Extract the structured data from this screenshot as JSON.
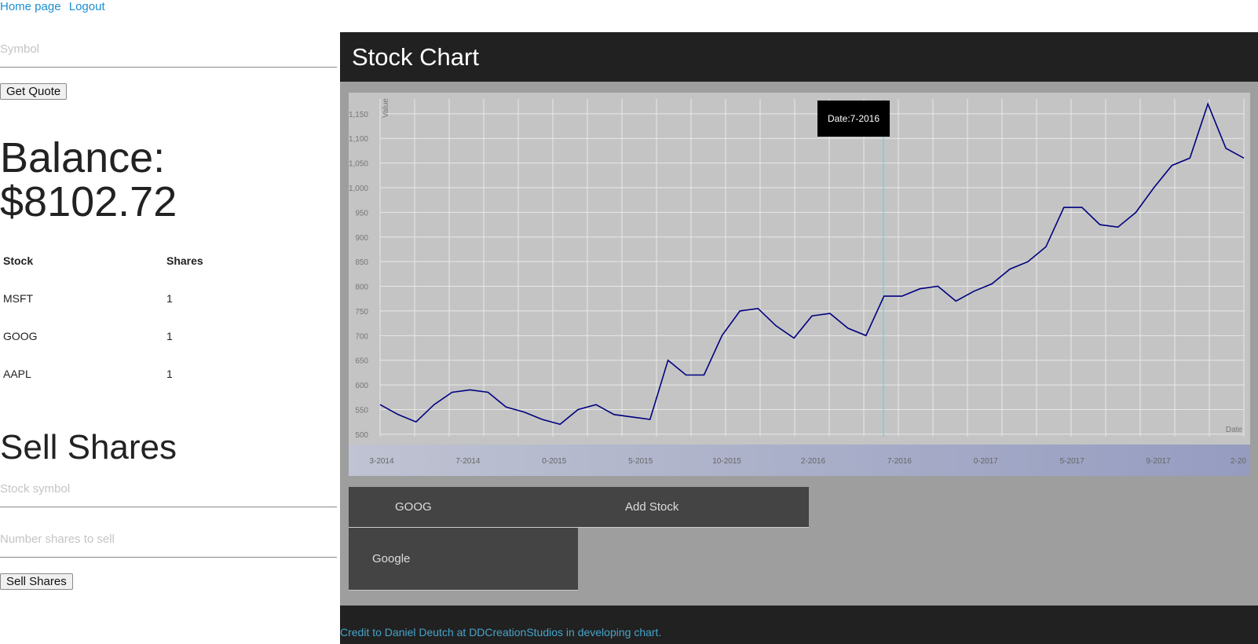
{
  "nav": {
    "home": "Home page",
    "logout": "Logout"
  },
  "quote": {
    "symbol_placeholder": "Symbol",
    "button": "Get Quote"
  },
  "balance": {
    "label": "Balance:",
    "value": "$8102.72"
  },
  "holdings": {
    "headers": [
      "Stock",
      "Shares"
    ],
    "rows": [
      {
        "stock": "MSFT",
        "shares": "1"
      },
      {
        "stock": "GOOG",
        "shares": "1"
      },
      {
        "stock": "AAPL",
        "shares": "1"
      }
    ]
  },
  "sell": {
    "title": "Sell Shares",
    "symbol_placeholder": "Stock symbol",
    "shares_placeholder": "Number shares to sell",
    "button": "Sell Shares"
  },
  "chart_panel": {
    "title": "Stock Chart",
    "tooltip": "Date:7-2016",
    "symbol_value": "GOOG",
    "add_button": "Add Stock",
    "dropdown_option": "Google",
    "footer": "Credit to Daniel Deutch at DDCreationStudios in developing chart."
  },
  "colors": {
    "line": "#000080",
    "header_bg": "#212121",
    "panel_bg": "#9e9e9e",
    "plot_bg": "#c4c4c4",
    "link": "#1a8fd1"
  },
  "chart_data": {
    "type": "line",
    "ylabel": "Value",
    "xlabel": "Date",
    "ylim": [
      495,
      1180
    ],
    "y_ticks": [
      "500",
      "550",
      "600",
      "650",
      "700",
      "750",
      "800",
      "850",
      "900",
      "950",
      "1,000",
      "1,050",
      "1,100",
      "1,150"
    ],
    "x_ticks": [
      "3-2014",
      "7-2014",
      "0-2015",
      "5-2015",
      "10-2015",
      "2-2016",
      "7-2016",
      "0-2017",
      "5-2017",
      "9-2017",
      "2-20"
    ],
    "x_range": [
      "2014-03",
      "2018-03"
    ],
    "series": [
      {
        "x": [
          "2014-03",
          "2014-04",
          "2014-05",
          "2014-06",
          "2014-07",
          "2014-08",
          "2014-09",
          "2014-10",
          "2014-11",
          "2014-12",
          "2015-01",
          "2015-02",
          "2015-03",
          "2015-04",
          "2015-05",
          "2015-06",
          "2015-07",
          "2015-08",
          "2015-09",
          "2015-10",
          "2015-11",
          "2015-12",
          "2016-01",
          "2016-02",
          "2016-03",
          "2016-04",
          "2016-05",
          "2016-06",
          "2016-07",
          "2016-08",
          "2016-09",
          "2016-10",
          "2016-11",
          "2016-12",
          "2017-01",
          "2017-02",
          "2017-03",
          "2017-04",
          "2017-05",
          "2017-06",
          "2017-07",
          "2017-08",
          "2017-09",
          "2017-10",
          "2017-11",
          "2017-12",
          "2018-01",
          "2018-02",
          "2018-03"
        ],
        "values": [
          560,
          540,
          525,
          560,
          585,
          590,
          585,
          555,
          545,
          530,
          520,
          550,
          560,
          540,
          535,
          530,
          650,
          620,
          620,
          700,
          750,
          755,
          720,
          695,
          740,
          745,
          715,
          700,
          780,
          780,
          795,
          800,
          770,
          790,
          805,
          835,
          850,
          880,
          960,
          960,
          925,
          920,
          950,
          1000,
          1045,
          1060,
          1170,
          1080,
          1060
        ]
      }
    ]
  }
}
